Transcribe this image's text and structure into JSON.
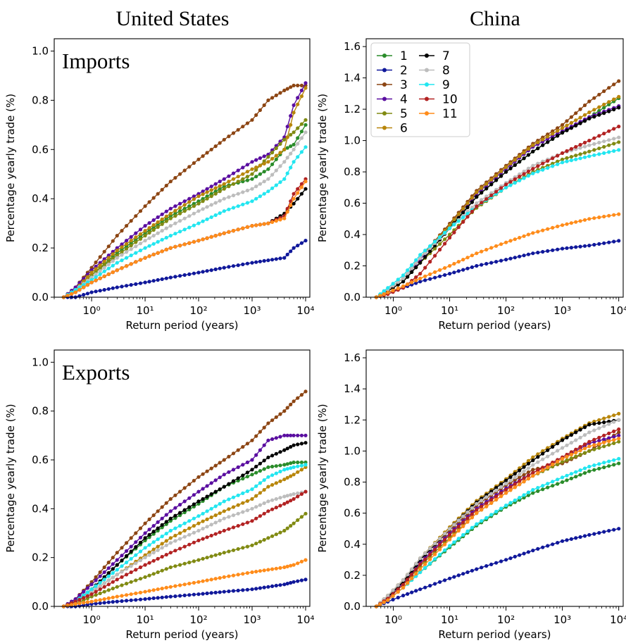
{
  "figure": {
    "column_titles": [
      "United States",
      "China"
    ]
  },
  "colors": {
    "1": "#2a8c2a",
    "2": "#10189a",
    "3": "#8c4513",
    "4": "#5a0ea0",
    "5": "#808a12",
    "6": "#b8860b",
    "7": "#000000",
    "8": "#bdbdbd",
    "9": "#22e6f0",
    "10": "#b22222",
    "11": "#ff8c1a"
  },
  "chart_data": [
    {
      "type": "line",
      "panel": "us-imports",
      "title": "United States",
      "annotation": "Imports",
      "xlabel": "Return period (years)",
      "ylabel": "Percentage yearly trade (%)",
      "xscale": "log",
      "xlim": [
        0.2,
        12000
      ],
      "ylim": [
        0,
        1.05
      ],
      "xticks": [
        1,
        10,
        100,
        1000,
        10000
      ],
      "xtick_labels": [
        "10⁰",
        "10¹",
        "10²",
        "10³",
        "10⁴"
      ],
      "yticks": [
        0,
        0.2,
        0.4,
        0.6,
        0.8,
        1.0
      ],
      "ytick_labels": [
        "0.0",
        "0.2",
        "0.4",
        "0.6",
        "0.8",
        "1.0"
      ],
      "x": [
        0.3,
        0.5,
        1,
        3,
        10,
        30,
        100,
        300,
        1000,
        2000,
        4000,
        6000,
        10000
      ],
      "series": [
        {
          "id": "1",
          "values": [
            0.0,
            0.03,
            0.09,
            0.18,
            0.26,
            0.33,
            0.39,
            0.45,
            0.48,
            0.52,
            0.6,
            0.62,
            0.7
          ]
        },
        {
          "id": "2",
          "values": [
            0.0,
            0.0,
            0.02,
            0.04,
            0.06,
            0.08,
            0.1,
            0.12,
            0.14,
            0.15,
            0.16,
            0.2,
            0.23
          ]
        },
        {
          "id": "3",
          "values": [
            0.0,
            0.04,
            0.12,
            0.25,
            0.37,
            0.47,
            0.56,
            0.64,
            0.72,
            0.8,
            0.84,
            0.86,
            0.86
          ]
        },
        {
          "id": "4",
          "values": [
            0.0,
            0.04,
            0.11,
            0.2,
            0.29,
            0.36,
            0.42,
            0.48,
            0.55,
            0.58,
            0.65,
            0.78,
            0.87
          ]
        },
        {
          "id": "5",
          "values": [
            0.0,
            0.03,
            0.09,
            0.17,
            0.25,
            0.32,
            0.38,
            0.44,
            0.5,
            0.57,
            0.64,
            0.67,
            0.72
          ]
        },
        {
          "id": "6",
          "values": [
            0.0,
            0.03,
            0.1,
            0.19,
            0.27,
            0.34,
            0.41,
            0.46,
            0.52,
            0.55,
            0.6,
            0.75,
            0.85
          ]
        },
        {
          "id": "7",
          "values": [
            0.0,
            0.02,
            0.06,
            0.11,
            0.16,
            0.2,
            0.23,
            0.26,
            0.29,
            0.3,
            0.34,
            0.38,
            0.44
          ]
        },
        {
          "id": "8",
          "values": [
            0.0,
            0.03,
            0.08,
            0.16,
            0.23,
            0.29,
            0.35,
            0.4,
            0.44,
            0.48,
            0.55,
            0.6,
            0.67
          ]
        },
        {
          "id": "9",
          "values": [
            0.0,
            0.03,
            0.07,
            0.14,
            0.2,
            0.25,
            0.3,
            0.35,
            0.39,
            0.43,
            0.48,
            0.55,
            0.61
          ]
        },
        {
          "id": "10",
          "values": [
            0.0,
            0.02,
            0.06,
            0.11,
            0.16,
            0.2,
            0.23,
            0.26,
            0.29,
            0.3,
            0.33,
            0.42,
            0.48
          ]
        },
        {
          "id": "11",
          "values": [
            0.0,
            0.02,
            0.06,
            0.11,
            0.16,
            0.2,
            0.23,
            0.26,
            0.29,
            0.3,
            0.32,
            0.4,
            0.47
          ]
        }
      ]
    },
    {
      "type": "line",
      "panel": "china-imports",
      "title": "China",
      "annotation": "",
      "xlabel": "Return period (years)",
      "ylabel": "Percentage yearly trade (%)",
      "xscale": "log",
      "xlim": [
        0.33,
        12000
      ],
      "ylim": [
        0,
        1.65
      ],
      "xticks": [
        1,
        10,
        100,
        1000,
        10000
      ],
      "xtick_labels": [
        "10⁰",
        "10¹",
        "10²",
        "10³",
        "10⁴"
      ],
      "yticks": [
        0,
        0.2,
        0.4,
        0.6,
        0.8,
        1.0,
        1.2,
        1.4,
        1.6
      ],
      "ytick_labels": [
        "0.0",
        "0.2",
        "0.4",
        "0.6",
        "0.8",
        "1.0",
        "1.2",
        "1.4",
        "1.6"
      ],
      "x": [
        0.5,
        0.8,
        1.5,
        3,
        10,
        30,
        100,
        300,
        1000,
        3000,
        10000
      ],
      "series": [
        {
          "id": "1",
          "values": [
            0.0,
            0.05,
            0.12,
            0.25,
            0.45,
            0.64,
            0.8,
            0.93,
            1.05,
            1.15,
            1.27
          ]
        },
        {
          "id": "2",
          "values": [
            0.0,
            0.03,
            0.06,
            0.1,
            0.15,
            0.2,
            0.24,
            0.28,
            0.31,
            0.33,
            0.36
          ]
        },
        {
          "id": "3",
          "values": [
            0.0,
            0.05,
            0.12,
            0.25,
            0.47,
            0.68,
            0.84,
            0.98,
            1.1,
            1.25,
            1.38
          ]
        },
        {
          "id": "4",
          "values": [
            0.0,
            0.05,
            0.12,
            0.24,
            0.46,
            0.66,
            0.82,
            0.96,
            1.06,
            1.15,
            1.22
          ]
        },
        {
          "id": "5",
          "values": [
            0.0,
            0.04,
            0.1,
            0.22,
            0.4,
            0.57,
            0.7,
            0.8,
            0.88,
            0.93,
            0.99
          ]
        },
        {
          "id": "6",
          "values": [
            0.0,
            0.05,
            0.12,
            0.25,
            0.46,
            0.67,
            0.83,
            0.97,
            1.08,
            1.18,
            1.28
          ]
        },
        {
          "id": "7",
          "values": [
            0.0,
            0.04,
            0.1,
            0.22,
            0.44,
            0.64,
            0.8,
            0.93,
            1.05,
            1.14,
            1.21
          ]
        },
        {
          "id": "8",
          "values": [
            0.0,
            0.05,
            0.12,
            0.25,
            0.44,
            0.6,
            0.73,
            0.84,
            0.92,
            0.97,
            1.02
          ]
        },
        {
          "id": "9",
          "values": [
            0.0,
            0.06,
            0.14,
            0.27,
            0.44,
            0.58,
            0.7,
            0.79,
            0.86,
            0.9,
            0.94
          ]
        },
        {
          "id": "10",
          "values": [
            0.0,
            0.02,
            0.06,
            0.15,
            0.38,
            0.58,
            0.72,
            0.82,
            0.92,
            1.0,
            1.09
          ]
        },
        {
          "id": "11",
          "values": [
            0.0,
            0.03,
            0.07,
            0.12,
            0.2,
            0.28,
            0.35,
            0.41,
            0.46,
            0.5,
            0.53
          ]
        }
      ]
    },
    {
      "type": "line",
      "panel": "us-exports",
      "title": "",
      "annotation": "Exports",
      "xlabel": "Return period (years)",
      "ylabel": "Percentage yearly trade (%)",
      "xscale": "log",
      "xlim": [
        0.2,
        12000
      ],
      "ylim": [
        0,
        1.05
      ],
      "xticks": [
        1,
        10,
        100,
        1000,
        10000
      ],
      "xtick_labels": [
        "10⁰",
        "10¹",
        "10²",
        "10³",
        "10⁴"
      ],
      "yticks": [
        0,
        0.2,
        0.4,
        0.6,
        0.8,
        1.0
      ],
      "ytick_labels": [
        "0.0",
        "0.2",
        "0.4",
        "0.6",
        "0.8",
        "1.0"
      ],
      "x": [
        0.3,
        0.5,
        1,
        3,
        10,
        30,
        100,
        300,
        1000,
        2000,
        4000,
        6000,
        10000
      ],
      "series": [
        {
          "id": "1",
          "values": [
            0.0,
            0.02,
            0.07,
            0.17,
            0.27,
            0.35,
            0.42,
            0.49,
            0.54,
            0.57,
            0.58,
            0.59,
            0.59
          ]
        },
        {
          "id": "2",
          "values": [
            0.0,
            0.0,
            0.01,
            0.02,
            0.03,
            0.04,
            0.05,
            0.06,
            0.07,
            0.08,
            0.09,
            0.1,
            0.11
          ]
        },
        {
          "id": "3",
          "values": [
            0.0,
            0.03,
            0.1,
            0.22,
            0.34,
            0.44,
            0.53,
            0.6,
            0.68,
            0.75,
            0.8,
            0.84,
            0.88
          ]
        },
        {
          "id": "4",
          "values": [
            0.0,
            0.03,
            0.09,
            0.19,
            0.3,
            0.39,
            0.47,
            0.54,
            0.6,
            0.68,
            0.7,
            0.7,
            0.7
          ]
        },
        {
          "id": "5",
          "values": [
            0.0,
            0.01,
            0.04,
            0.08,
            0.12,
            0.16,
            0.19,
            0.22,
            0.25,
            0.28,
            0.31,
            0.34,
            0.38
          ]
        },
        {
          "id": "6",
          "values": [
            0.0,
            0.02,
            0.06,
            0.13,
            0.21,
            0.28,
            0.34,
            0.39,
            0.44,
            0.49,
            0.52,
            0.54,
            0.57
          ]
        },
        {
          "id": "7",
          "values": [
            0.0,
            0.02,
            0.07,
            0.17,
            0.28,
            0.36,
            0.43,
            0.49,
            0.56,
            0.61,
            0.64,
            0.66,
            0.67
          ]
        },
        {
          "id": "8",
          "values": [
            0.0,
            0.02,
            0.06,
            0.13,
            0.2,
            0.26,
            0.31,
            0.36,
            0.4,
            0.43,
            0.45,
            0.46,
            0.47
          ]
        },
        {
          "id": "9",
          "values": [
            0.0,
            0.02,
            0.07,
            0.15,
            0.24,
            0.31,
            0.37,
            0.43,
            0.48,
            0.53,
            0.56,
            0.57,
            0.58
          ]
        },
        {
          "id": "10",
          "values": [
            0.0,
            0.02,
            0.05,
            0.11,
            0.17,
            0.22,
            0.27,
            0.31,
            0.35,
            0.39,
            0.42,
            0.44,
            0.47
          ]
        },
        {
          "id": "11",
          "values": [
            0.0,
            0.01,
            0.02,
            0.04,
            0.06,
            0.08,
            0.1,
            0.12,
            0.14,
            0.15,
            0.16,
            0.17,
            0.19
          ]
        }
      ]
    },
    {
      "type": "line",
      "panel": "china-exports",
      "title": "",
      "annotation": "",
      "xlabel": "Return period (years)",
      "ylabel": "Percentage yearly trade (%)",
      "xscale": "log",
      "xlim": [
        0.33,
        12000
      ],
      "ylim": [
        0,
        1.65
      ],
      "xticks": [
        1,
        10,
        100,
        1000,
        10000
      ],
      "xtick_labels": [
        "10⁰",
        "10¹",
        "10²",
        "10³",
        "10⁴"
      ],
      "yticks": [
        0,
        0.2,
        0.4,
        0.6,
        0.8,
        1.0,
        1.2,
        1.4,
        1.6
      ],
      "ytick_labels": [
        "0.0",
        "0.2",
        "0.4",
        "0.6",
        "0.8",
        "1.0",
        "1.2",
        "1.4",
        "1.6"
      ],
      "x": [
        0.5,
        0.8,
        1.5,
        3,
        10,
        30,
        100,
        300,
        1000,
        3000,
        10000
      ],
      "series": [
        {
          "id": "1",
          "values": [
            0.0,
            0.04,
            0.12,
            0.22,
            0.38,
            0.52,
            0.64,
            0.73,
            0.8,
            0.87,
            0.92
          ]
        },
        {
          "id": "2",
          "values": [
            0.0,
            0.03,
            0.07,
            0.11,
            0.18,
            0.24,
            0.3,
            0.36,
            0.42,
            0.46,
            0.5
          ]
        },
        {
          "id": "3",
          "values": [
            0.0,
            0.07,
            0.17,
            0.3,
            0.49,
            0.65,
            0.78,
            0.88,
            0.92,
            1.0,
            1.12
          ]
        },
        {
          "id": "4",
          "values": [
            0.0,
            0.06,
            0.15,
            0.28,
            0.47,
            0.63,
            0.76,
            0.86,
            0.95,
            1.05,
            1.1
          ]
        },
        {
          "id": "5",
          "values": [
            0.0,
            0.05,
            0.14,
            0.26,
            0.44,
            0.6,
            0.73,
            0.84,
            0.93,
            1.0,
            1.06
          ]
        },
        {
          "id": "6",
          "values": [
            0.0,
            0.07,
            0.17,
            0.31,
            0.51,
            0.68,
            0.82,
            0.96,
            1.08,
            1.18,
            1.24
          ]
        },
        {
          "id": "7",
          "values": [
            0.0,
            0.06,
            0.16,
            0.3,
            0.5,
            0.67,
            0.81,
            0.94,
            1.07,
            1.17,
            1.2
          ]
        },
        {
          "id": "8",
          "values": [
            0.0,
            0.07,
            0.17,
            0.31,
            0.5,
            0.66,
            0.79,
            0.91,
            1.02,
            1.12,
            1.2
          ]
        },
        {
          "id": "9",
          "values": [
            0.0,
            0.04,
            0.12,
            0.22,
            0.39,
            0.53,
            0.65,
            0.75,
            0.83,
            0.9,
            0.95
          ]
        },
        {
          "id": "10",
          "values": [
            0.0,
            0.05,
            0.14,
            0.27,
            0.46,
            0.62,
            0.75,
            0.86,
            0.96,
            1.06,
            1.14
          ]
        },
        {
          "id": "11",
          "values": [
            0.0,
            0.04,
            0.12,
            0.24,
            0.43,
            0.6,
            0.73,
            0.84,
            0.95,
            1.03,
            1.08
          ]
        }
      ]
    }
  ],
  "legend": {
    "entries": [
      "1",
      "2",
      "3",
      "4",
      "5",
      "6",
      "7",
      "8",
      "9",
      "10",
      "11"
    ]
  }
}
